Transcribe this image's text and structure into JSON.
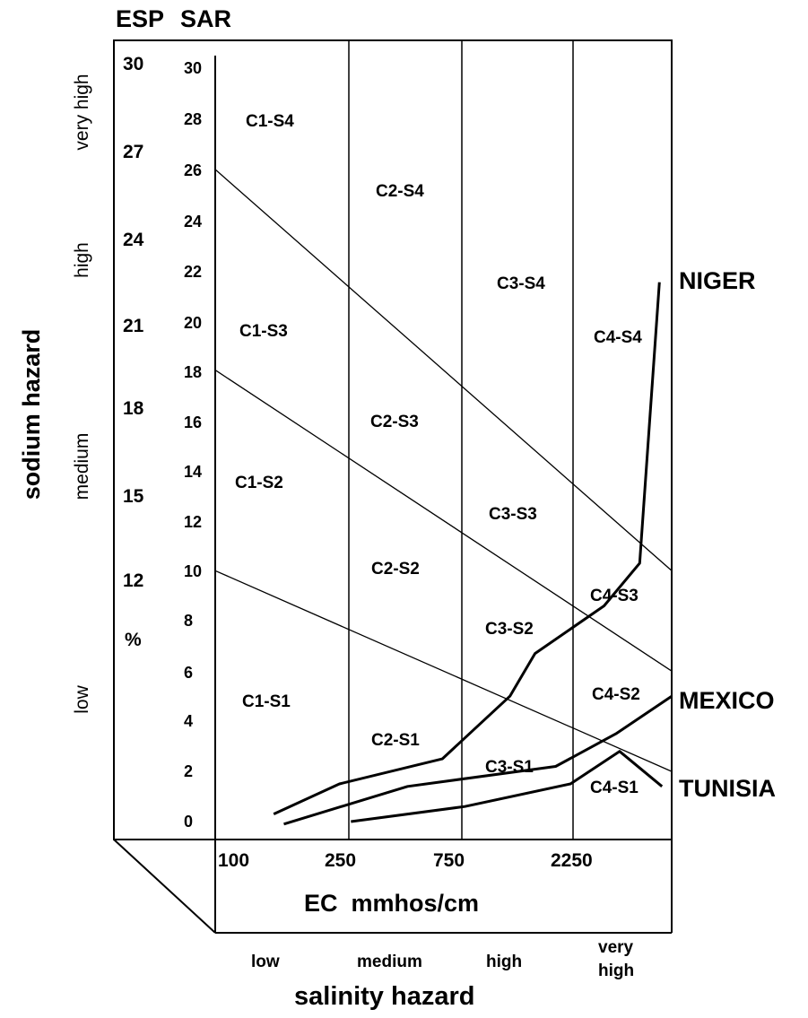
{
  "header": {
    "esp": "ESP",
    "sar": "SAR"
  },
  "axis_titles": {
    "sodium_hazard": "sodium hazard",
    "ec": "EC  mmhos/cm",
    "salinity_hazard": "salinity hazard"
  },
  "sodium_levels": {
    "very_high": "very high",
    "high": "high",
    "medium": "medium",
    "low": "low"
  },
  "salinity_levels": {
    "low": "low",
    "medium": "medium",
    "high": "high",
    "very_high_1": "very",
    "very_high_2": "high"
  },
  "esp_ticks": [
    "30",
    "27",
    "24",
    "21",
    "18",
    "15",
    "12"
  ],
  "esp_unit": "%",
  "sar_ticks": [
    "30",
    "28",
    "26",
    "24",
    "22",
    "20",
    "18",
    "16",
    "14",
    "12",
    "10",
    "8",
    "6",
    "4",
    "2",
    "0"
  ],
  "ec_ticks": [
    "100",
    "250",
    "750",
    "2250"
  ],
  "zones": {
    "c1s4": "C1-S4",
    "c2s4": "C2-S4",
    "c3s4": "C3-S4",
    "c4s4": "C4-S4",
    "c1s3": "C1-S3",
    "c2s3": "C2-S3",
    "c3s3": "C3-S3",
    "c4s3": "C4-S3",
    "c1s2": "C1-S2",
    "c2s2": "C2-S2",
    "c3s2": "C3-S2",
    "c4s2": "C4-S2",
    "c1s1": "C1-S1",
    "c2s1": "C2-S1",
    "c3s1": "C3-S1",
    "c4s1": "C4-S1"
  },
  "series_labels": {
    "niger": "NIGER",
    "mexico": "MEXICO",
    "tunisia": "TUNISIA"
  },
  "chart_data": {
    "type": "line",
    "x_scale": "log",
    "xlabel": "EC  mmhos/cm",
    "ylabel": "sodium hazard",
    "x_ticks": [
      100,
      250,
      750,
      2250
    ],
    "xlim": [
      100,
      5000
    ],
    "ylim": [
      0,
      30
    ],
    "boundaries": [
      {
        "points": [
          [
            100,
            26
          ],
          [
            5000,
            10
          ]
        ]
      },
      {
        "points": [
          [
            100,
            18
          ],
          [
            5000,
            6
          ]
        ]
      },
      {
        "points": [
          [
            100,
            10
          ],
          [
            5000,
            2
          ]
        ]
      }
    ],
    "series": [
      {
        "name": "NIGER",
        "points": [
          [
            165,
            0.3
          ],
          [
            290,
            1.5
          ],
          [
            700,
            2.5
          ],
          [
            1250,
            5
          ],
          [
            1550,
            6.7
          ],
          [
            2800,
            8.6
          ],
          [
            3800,
            10.3
          ],
          [
            4500,
            21.5
          ]
        ]
      },
      {
        "name": "MEXICO",
        "points": [
          [
            180,
            -0.1
          ],
          [
            520,
            1.4
          ],
          [
            1850,
            2.2
          ],
          [
            3100,
            3.5
          ],
          [
            5000,
            5
          ]
        ]
      },
      {
        "name": "TUNISIA",
        "points": [
          [
            320,
            0
          ],
          [
            850,
            0.6
          ],
          [
            2100,
            1.5
          ],
          [
            3200,
            2.8
          ],
          [
            4600,
            1.4
          ]
        ]
      }
    ]
  }
}
